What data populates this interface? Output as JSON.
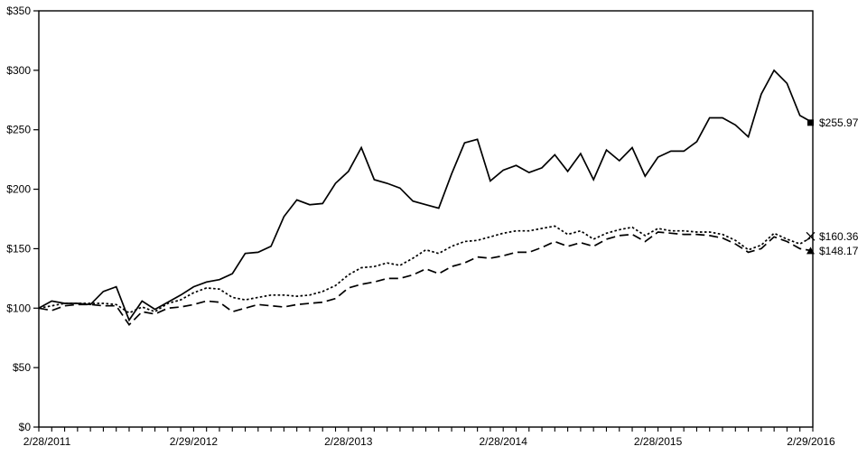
{
  "chart_data": {
    "type": "line",
    "title": "",
    "xlabel": "",
    "ylabel": "",
    "ylim": [
      0,
      350
    ],
    "y_tick_step": 50,
    "y_tick_labels": [
      "$0",
      "$50",
      "$100",
      "$150",
      "$200",
      "$250",
      "$300",
      "$350"
    ],
    "y_tick_values": [
      0,
      50,
      100,
      150,
      200,
      250,
      300,
      350
    ],
    "x_tick_labels": [
      "2/28/2011",
      "2/29/2012",
      "2/28/2013",
      "2/28/2014",
      "2/28/2015",
      "2/29/2016"
    ],
    "x_points_per_series": 61,
    "x_minor_tick_unit": "month",
    "grid": "off",
    "legend": "none",
    "plot_border": "rectangle",
    "colors": {
      "line": "#000000",
      "background": "#ffffff",
      "text": "#000000"
    },
    "series": [
      {
        "name": "series-solid",
        "line_style": "solid",
        "marker": "square",
        "end_label": "$255.97",
        "end_value": 255.97,
        "values": [
          100,
          106,
          104,
          104,
          103,
          114,
          118,
          90,
          106,
          99,
          105,
          111,
          118,
          122,
          124,
          129,
          146,
          147,
          152,
          177,
          191,
          187,
          188,
          205,
          215,
          235,
          208,
          205,
          201,
          190,
          187,
          184,
          213,
          239,
          242,
          207,
          216,
          220,
          214,
          218,
          229,
          215,
          230,
          208,
          233,
          224,
          235,
          211,
          227,
          232,
          232,
          240,
          260,
          260,
          254,
          244,
          280,
          300,
          289,
          262,
          255.97
        ]
      },
      {
        "name": "series-dotted",
        "line_style": "dotted",
        "marker": "x",
        "end_label": "$160.36",
        "end_value": 160.36,
        "values": [
          100,
          102,
          104,
          104,
          104,
          104,
          103,
          96,
          101,
          97,
          104,
          107,
          113,
          117,
          116,
          109,
          107,
          109,
          111,
          111,
          110,
          111,
          114,
          119,
          128,
          134,
          135,
          138,
          136,
          142,
          149,
          146,
          152,
          156,
          157,
          160,
          163,
          165,
          165,
          167,
          169,
          162,
          165,
          158,
          163,
          166,
          168,
          161,
          167,
          165,
          165,
          164,
          164,
          162,
          157,
          149,
          153,
          163,
          158,
          154,
          160.36
        ]
      },
      {
        "name": "series-dashed",
        "line_style": "dashed",
        "marker": "triangle",
        "end_label": "$148.17",
        "end_value": 148.17,
        "values": [
          100,
          98,
          102,
          103,
          103,
          102,
          102,
          86,
          97,
          95,
          100,
          101,
          103,
          106,
          105,
          97,
          100,
          103,
          102,
          101,
          103,
          104,
          105,
          108,
          117,
          120,
          122,
          125,
          125,
          128,
          133,
          129,
          135,
          138,
          143,
          142,
          144,
          147,
          147,
          151,
          156,
          152,
          155,
          152,
          158,
          161,
          162,
          156,
          164,
          163,
          162,
          162,
          161,
          159,
          154,
          147,
          150,
          160,
          156,
          150,
          148.17
        ]
      }
    ]
  }
}
